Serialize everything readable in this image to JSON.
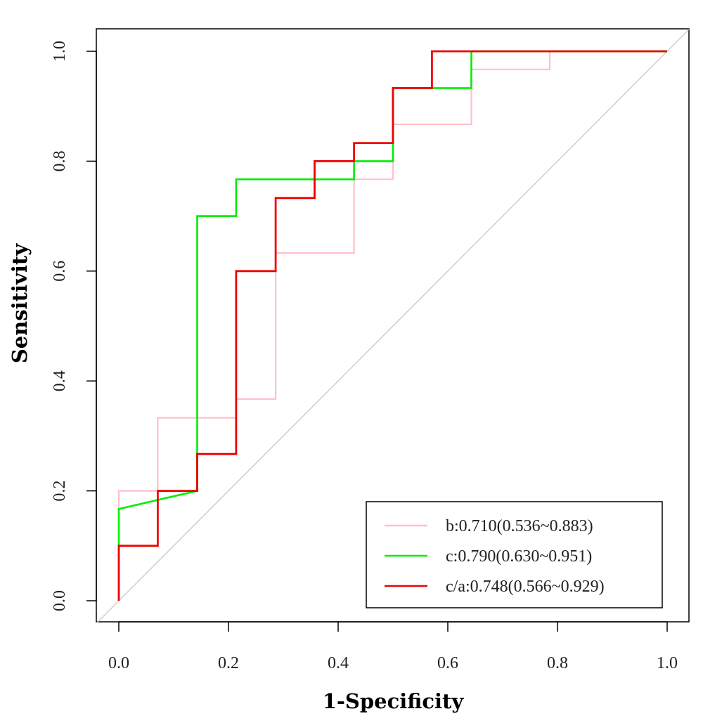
{
  "chart_data": {
    "type": "line",
    "title": "",
    "xlabel": "1-Specificity",
    "ylabel": "Sensitivity",
    "xlim": [
      -0.04,
      1.04
    ],
    "ylim": [
      -0.04,
      1.04
    ],
    "xticks": [
      "0.0",
      "0.2",
      "0.4",
      "0.6",
      "0.8",
      "1.0"
    ],
    "yticks": [
      "0.0",
      "0.2",
      "0.4",
      "0.6",
      "0.8",
      "1.0"
    ],
    "grid": false,
    "legend_position": "bottom-right",
    "reference_line": {
      "from": [
        0,
        0
      ],
      "to": [
        1,
        1
      ],
      "color": "#c8c8c8"
    },
    "series": [
      {
        "name": "b:0.710(0.536~0.883)",
        "color": "#ffc0cb",
        "points": [
          [
            0,
            0
          ],
          [
            0,
            0.2
          ],
          [
            0.071,
            0.2
          ],
          [
            0.071,
            0.333
          ],
          [
            0.214,
            0.333
          ],
          [
            0.214,
            0.367
          ],
          [
            0.286,
            0.367
          ],
          [
            0.286,
            0.633
          ],
          [
            0.429,
            0.633
          ],
          [
            0.429,
            0.767
          ],
          [
            0.5,
            0.767
          ],
          [
            0.5,
            0.867
          ],
          [
            0.643,
            0.867
          ],
          [
            0.643,
            0.967
          ],
          [
            0.786,
            0.967
          ],
          [
            0.786,
            1.0
          ],
          [
            1.0,
            1.0
          ]
        ]
      },
      {
        "name": "c:0.790(0.630~0.951)",
        "color": "#00ee00",
        "points": [
          [
            0,
            0.1
          ],
          [
            0,
            0.167
          ],
          [
            0.143,
            0.2
          ],
          [
            0.143,
            0.7
          ],
          [
            0.214,
            0.7
          ],
          [
            0.214,
            0.767
          ],
          [
            0.429,
            0.767
          ],
          [
            0.429,
            0.8
          ],
          [
            0.5,
            0.8
          ],
          [
            0.5,
            0.933
          ],
          [
            0.643,
            0.933
          ],
          [
            0.643,
            1.0
          ],
          [
            1.0,
            1.0
          ]
        ]
      },
      {
        "name": "c/a:0.748(0.566~0.929)",
        "color": "#ee0000",
        "points": [
          [
            0,
            0
          ],
          [
            0,
            0.1
          ],
          [
            0.071,
            0.1
          ],
          [
            0.071,
            0.2
          ],
          [
            0.143,
            0.2
          ],
          [
            0.143,
            0.267
          ],
          [
            0.214,
            0.267
          ],
          [
            0.214,
            0.6
          ],
          [
            0.286,
            0.6
          ],
          [
            0.286,
            0.733
          ],
          [
            0.357,
            0.733
          ],
          [
            0.357,
            0.8
          ],
          [
            0.429,
            0.8
          ],
          [
            0.429,
            0.833
          ],
          [
            0.5,
            0.833
          ],
          [
            0.5,
            0.933
          ],
          [
            0.571,
            0.933
          ],
          [
            0.571,
            1.0
          ],
          [
            1.0,
            1.0
          ]
        ]
      }
    ]
  }
}
